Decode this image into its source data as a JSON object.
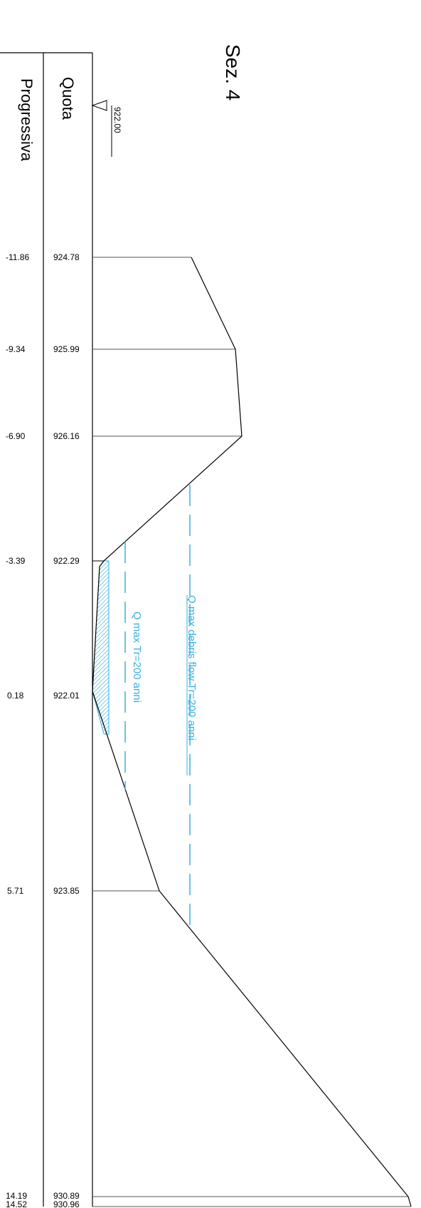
{
  "title": "Sez. 4",
  "header": {
    "quota_label": "Quota",
    "progressiva_label": "Progressiva"
  },
  "datum": {
    "label": "922.00",
    "value": 922.0
  },
  "colors": {
    "profile": "#000000",
    "water": "#3ab0de"
  },
  "stations": [
    {
      "progressiva": "-11.86",
      "quota": "924.78"
    },
    {
      "progressiva": "-9.34",
      "quota": "925.99"
    },
    {
      "progressiva": "-6.90",
      "quota": "926.16"
    },
    {
      "progressiva": "-3.39",
      "quota": "922.29"
    },
    {
      "progressiva": "0.18",
      "quota": "922.01"
    },
    {
      "progressiva": "5.71",
      "quota": "923.85"
    },
    {
      "progressiva": "14.19",
      "quota": "930.89"
    },
    {
      "progressiva": "14.52",
      "quota": "930.96"
    }
  ],
  "water_levels": [
    {
      "label": "Q max Tr=200 anni"
    },
    {
      "label": "Q max debris flow Tr=200 anni"
    }
  ]
}
